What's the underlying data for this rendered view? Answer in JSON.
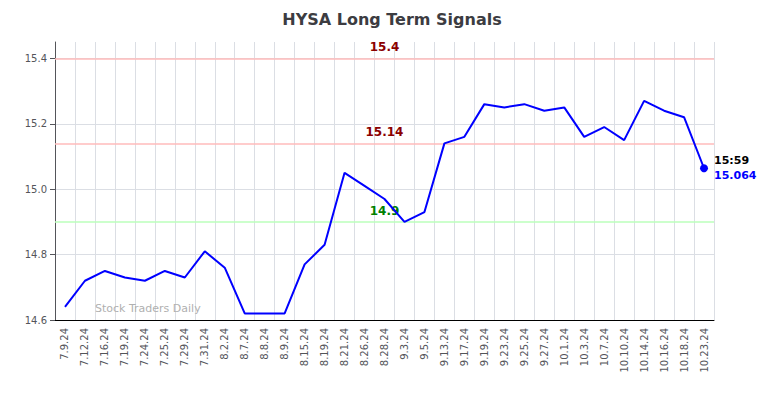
{
  "chart_data": {
    "type": "line",
    "title": "HYSA Long Term Signals",
    "categories": [
      "7.9.24",
      "7.12.24",
      "7.16.24",
      "7.19.24",
      "7.24.24",
      "7.25.24",
      "7.29.24",
      "7.31.24",
      "8.2.24",
      "8.7.24",
      "8.8.24",
      "8.9.24",
      "8.15.24",
      "8.19.24",
      "8.21.24",
      "8.26.24",
      "8.28.24",
      "9.3.24",
      "9.5.24",
      "9.13.24",
      "9.17.24",
      "9.19.24",
      "9.23.24",
      "9.25.24",
      "9.27.24",
      "10.1.24",
      "10.3.24",
      "10.7.24",
      "10.10.24",
      "10.14.24",
      "10.16.24",
      "10.18.24",
      "10.23.24"
    ],
    "values": [
      14.64,
      14.72,
      14.75,
      14.73,
      14.72,
      14.75,
      14.73,
      14.81,
      14.76,
      14.62,
      14.62,
      14.62,
      14.77,
      14.83,
      15.05,
      15.01,
      14.97,
      14.9,
      14.93,
      15.14,
      15.16,
      15.26,
      15.25,
      15.26,
      15.24,
      15.25,
      15.16,
      15.19,
      15.15,
      15.27,
      15.24,
      15.22,
      15.064
    ],
    "color": "blue",
    "ylim": [
      14.6,
      15.45
    ],
    "yticks": [
      14.6,
      14.8,
      {
        "value": 15,
        "label": "15.0"
      },
      15.2,
      15.4
    ],
    "grid": true,
    "reference_lines": [
      {
        "value": 15.4,
        "label": "15.4",
        "color": "#ffbbbb",
        "label_color": "darkred"
      },
      {
        "value": 15.14,
        "label": "15.14",
        "color": "#ffbbbb",
        "label_color": "darkred"
      },
      {
        "value": 14.9,
        "label": "14.9",
        "color": "#bbffbb",
        "label_color": "green"
      }
    ],
    "last_point": {
      "marker": "circle",
      "color": "blue",
      "labels": [
        {
          "text": "15:59",
          "color": "black"
        },
        {
          "text": "15.064",
          "color": "blue"
        }
      ]
    },
    "watermark": {
      "text": "Stock Traders Daily",
      "color": "#b0b0b0"
    }
  }
}
